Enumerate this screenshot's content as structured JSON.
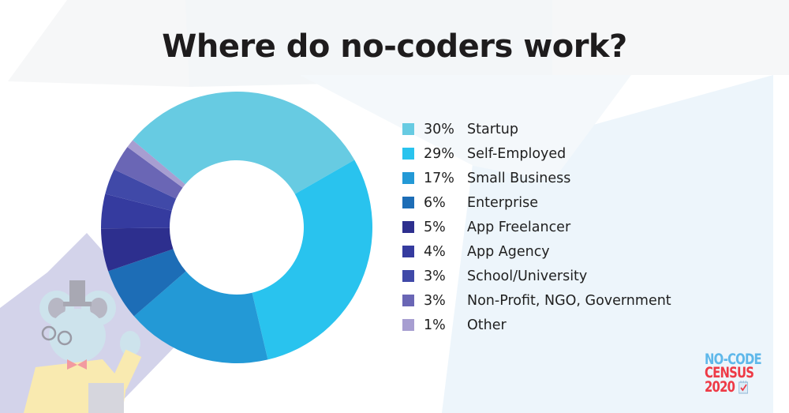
{
  "title": "Where do no-coders work?",
  "logo": {
    "line1": "NO-CODE",
    "line2": "CENSUS",
    "line3": "2020",
    "icon": "checklist-icon"
  },
  "legend": [
    {
      "pct": "30%",
      "label": "Startup",
      "color": "#67cbe2"
    },
    {
      "pct": "29%",
      "label": "Self-Employed",
      "color": "#29c3ee"
    },
    {
      "pct": "17%",
      "label": "Small Business",
      "color": "#2399d6"
    },
    {
      "pct": "6%",
      "label": "Enterprise",
      "color": "#1d6db6"
    },
    {
      "pct": "5%",
      "label": "App Freelancer",
      "color": "#2d2f8e"
    },
    {
      "pct": "4%",
      "label": "App Agency",
      "color": "#353b9f"
    },
    {
      "pct": "3%",
      "label": "School/University",
      "color": "#4049a8"
    },
    {
      "pct": "3%",
      "label": "Non-Profit, NGO, Government",
      "color": "#6a66b5"
    },
    {
      "pct": "1%",
      "label": "Other",
      "color": "#a79ed1"
    }
  ],
  "chart_data": {
    "type": "pie",
    "subtype": "donut",
    "title": "Where do no-coders work?",
    "categories": [
      "Startup",
      "Self-Employed",
      "Small Business",
      "Enterprise",
      "App Freelancer",
      "App Agency",
      "School/University",
      "Non-Profit, NGO, Government",
      "Other"
    ],
    "values": [
      30,
      29,
      17,
      6,
      5,
      4,
      3,
      3,
      1
    ],
    "unit": "%",
    "colors": [
      "#67cbe2",
      "#29c3ee",
      "#2399d6",
      "#1d6db6",
      "#2d2f8e",
      "#353b9f",
      "#4049a8",
      "#6a66b5",
      "#a79ed1"
    ],
    "legend_position": "right",
    "start_angle_deg": -50,
    "direction": "clockwise"
  }
}
